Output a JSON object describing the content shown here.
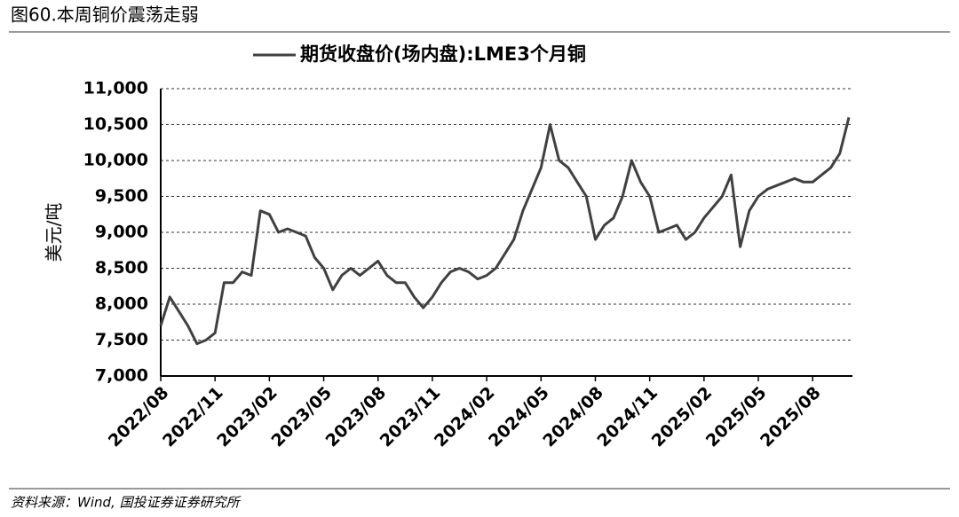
{
  "header": "图60.本周铜价震荡走弱",
  "source": "资料来源：Wind, 国投证券证券研究所",
  "chart_data": {
    "type": "line",
    "y_label": "美元/吨",
    "categories": [
      "2022/08",
      null,
      null,
      null,
      null,
      null,
      "2022/11",
      null,
      null,
      null,
      null,
      null,
      "2023/02",
      null,
      null,
      null,
      null,
      null,
      "2023/05",
      null,
      null,
      null,
      null,
      null,
      "2023/08",
      null,
      null,
      null,
      null,
      null,
      "2023/11",
      null,
      null,
      null,
      null,
      null,
      "2024/02",
      null,
      null,
      null,
      null,
      null,
      "2024/05",
      null,
      null,
      null,
      null,
      null,
      "2024/08",
      null,
      null,
      null,
      null,
      null,
      "2024/11",
      null,
      null,
      null,
      null,
      null,
      "2025/02",
      null,
      null,
      null,
      null,
      null,
      "2025/05",
      null,
      null,
      null,
      null,
      null,
      "2025/08",
      null,
      null,
      null,
      null
    ],
    "series": [
      {
        "name": "期货收盘价(场内盘):LME3个月铜",
        "color": "#404040",
        "values": [
          7700,
          8100,
          7900,
          7700,
          7450,
          7500,
          7600,
          8300,
          8300,
          8450,
          8400,
          9300,
          9250,
          9000,
          9050,
          9000,
          8950,
          8650,
          8500,
          8200,
          8400,
          8500,
          8400,
          8500,
          8600,
          8400,
          8300,
          8300,
          8100,
          7950,
          8100,
          8300,
          8450,
          8500,
          8450,
          8350,
          8400,
          8500,
          8700,
          8900,
          9300,
          9600,
          9900,
          10500,
          10000,
          9900,
          9700,
          9500,
          8900,
          9100,
          9200,
          9500,
          10000,
          9700,
          9500,
          9000,
          9050,
          9100,
          8900,
          9000,
          9200,
          9350,
          9500,
          9800,
          8800,
          9300,
          9500,
          9600,
          9650,
          9700,
          9750,
          9700,
          9700,
          9800,
          9900,
          10100,
          10600
        ]
      }
    ],
    "ylim": [
      7000,
      11000
    ],
    "yticks": [
      {
        "value": 7000,
        "label": "7,000"
      },
      {
        "value": 7500,
        "label": "7,500"
      },
      {
        "value": 8000,
        "label": "8,000"
      },
      {
        "value": 8500,
        "label": "8,500"
      },
      {
        "value": 9000,
        "label": "9,000"
      },
      {
        "value": 9500,
        "label": "9,500"
      },
      {
        "value": 10000,
        "label": "10,000"
      },
      {
        "value": 10500,
        "label": "10,500"
      },
      {
        "value": 11000,
        "label": "11,000"
      }
    ],
    "grid": true
  }
}
